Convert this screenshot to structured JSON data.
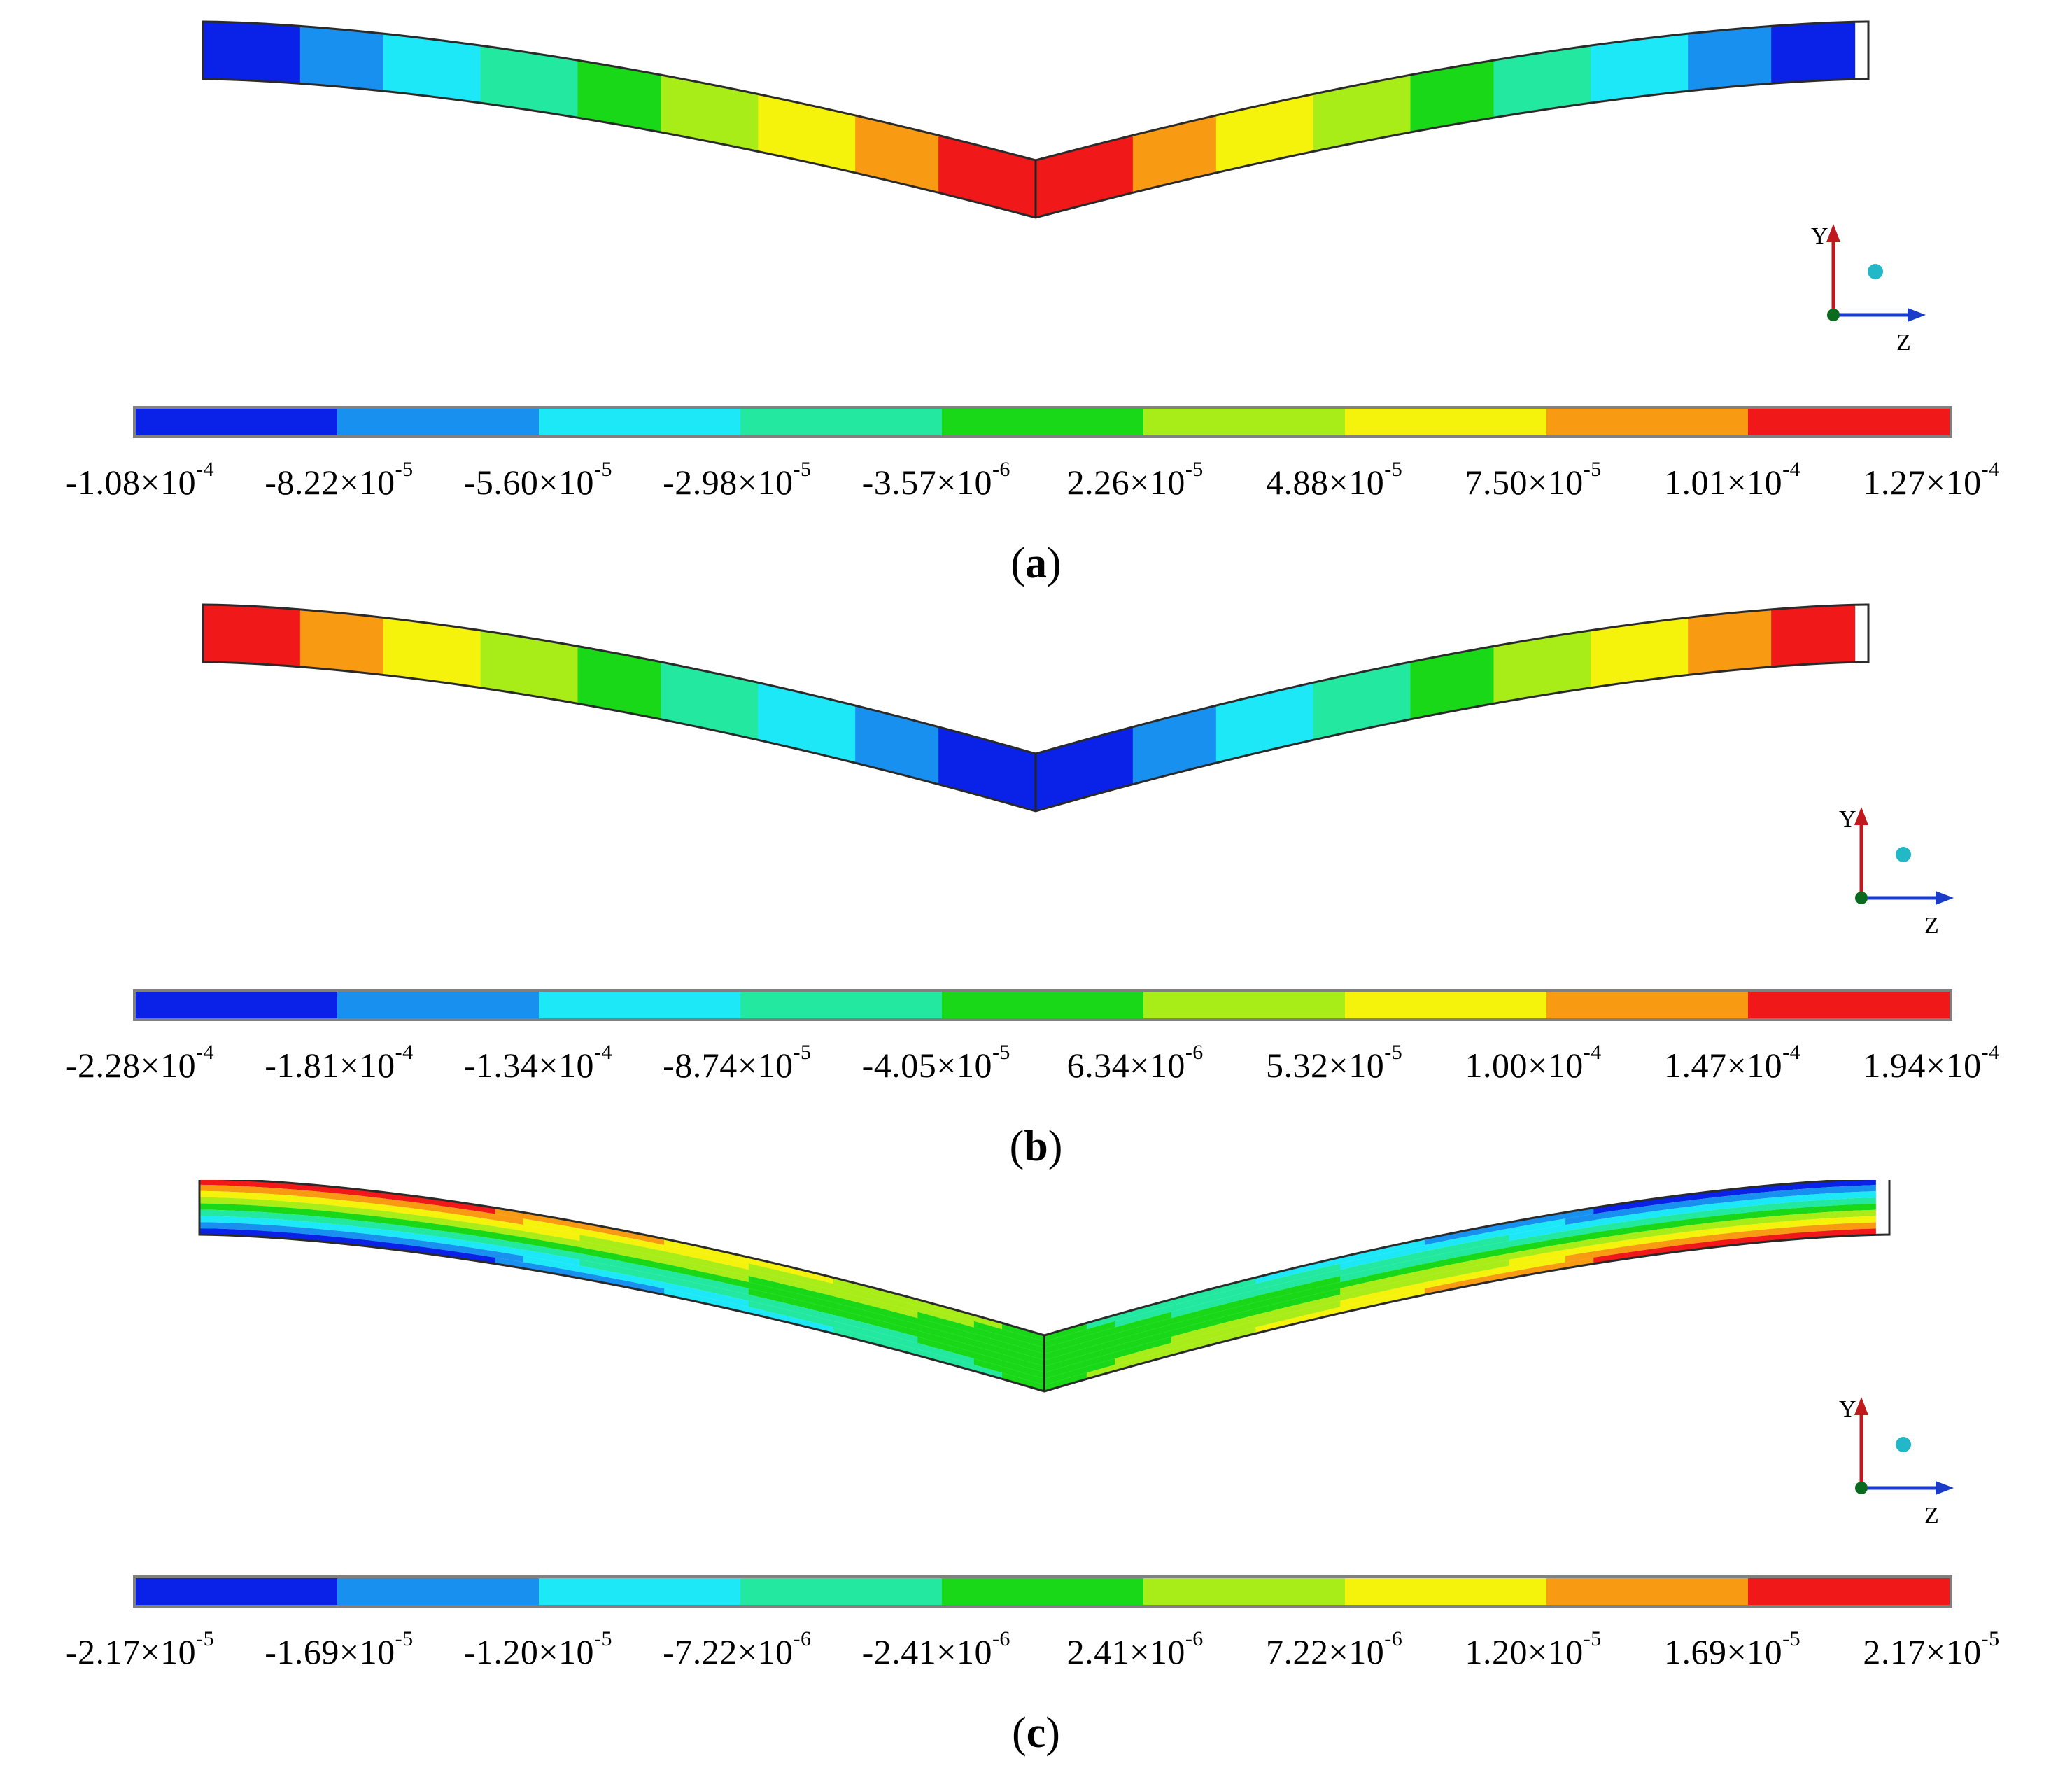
{
  "colormap": [
    "#0a22e8",
    "#1890f0",
    "#1ce8f8",
    "#22e8a0",
    "#18d818",
    "#a8ec18",
    "#f5f20c",
    "#f89a12",
    "#f01818"
  ],
  "panels": [
    {
      "caption_open": "(",
      "caption_letter": "a",
      "caption_close": ")",
      "axis_y": "Y",
      "axis_z": "Z",
      "ticks": [
        {
          "m": "-1.08",
          "e": "-4"
        },
        {
          "m": "-8.22",
          "e": "-5"
        },
        {
          "m": "-5.60",
          "e": "-5"
        },
        {
          "m": "-2.98",
          "e": "-5"
        },
        {
          "m": "-3.57",
          "e": "-6"
        },
        {
          "m": "2.26",
          "e": "-5"
        },
        {
          "m": "4.88",
          "e": "-5"
        },
        {
          "m": "7.50",
          "e": "-5"
        },
        {
          "m": "1.01",
          "e": "-4"
        },
        {
          "m": "1.27",
          "e": "-4"
        }
      ],
      "beam_pattern": "lengthwise-hot-center"
    },
    {
      "caption_open": "(",
      "caption_letter": "b",
      "caption_close": ")",
      "axis_y": "Y",
      "axis_z": "Z",
      "ticks": [
        {
          "m": "-2.28",
          "e": "-4"
        },
        {
          "m": "-1.81",
          "e": "-4"
        },
        {
          "m": "-1.34",
          "e": "-4"
        },
        {
          "m": "-8.74",
          "e": "-5"
        },
        {
          "m": "-4.05",
          "e": "-5"
        },
        {
          "m": "6.34",
          "e": "-6"
        },
        {
          "m": "5.32",
          "e": "-5"
        },
        {
          "m": "1.00",
          "e": "-4"
        },
        {
          "m": "1.47",
          "e": "-4"
        },
        {
          "m": "1.94",
          "e": "-4"
        }
      ],
      "beam_pattern": "lengthwise-cold-center"
    },
    {
      "caption_open": "(",
      "caption_letter": "c",
      "caption_close": ")",
      "axis_y": "Y",
      "axis_z": "Z",
      "ticks": [
        {
          "m": "-2.17",
          "e": "-5"
        },
        {
          "m": "-1.69",
          "e": "-5"
        },
        {
          "m": "-1.20",
          "e": "-5"
        },
        {
          "m": "-7.22",
          "e": "-6"
        },
        {
          "m": "-2.41",
          "e": "-6"
        },
        {
          "m": "2.41",
          "e": "-6"
        },
        {
          "m": "7.22",
          "e": "-6"
        },
        {
          "m": "1.20",
          "e": "-5"
        },
        {
          "m": "1.69",
          "e": "-5"
        },
        {
          "m": "2.17",
          "e": "-5"
        }
      ],
      "beam_pattern": "transverse-antisymmetric"
    }
  ]
}
